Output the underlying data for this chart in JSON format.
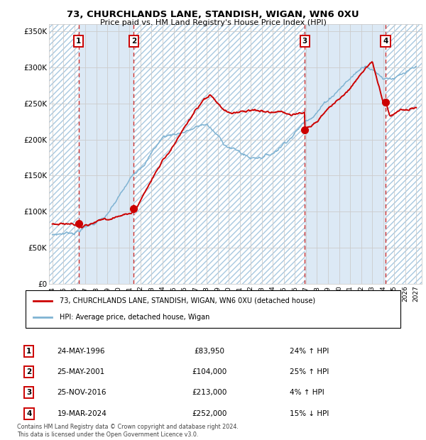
{
  "title1": "73, CHURCHLANDS LANE, STANDISH, WIGAN, WN6 0XU",
  "title2": "Price paid vs. HM Land Registry's House Price Index (HPI)",
  "ylim": [
    0,
    360000
  ],
  "yticks": [
    0,
    50000,
    100000,
    150000,
    200000,
    250000,
    300000,
    350000
  ],
  "ytick_labels": [
    "£0",
    "£50K",
    "£100K",
    "£150K",
    "£200K",
    "£250K",
    "£300K",
    "£350K"
  ],
  "xlim_start": 1993.7,
  "xlim_end": 2027.5,
  "xticks": [
    1994,
    1995,
    1996,
    1997,
    1998,
    1999,
    2000,
    2001,
    2002,
    2003,
    2004,
    2005,
    2006,
    2007,
    2008,
    2009,
    2010,
    2011,
    2012,
    2013,
    2014,
    2015,
    2016,
    2017,
    2018,
    2019,
    2020,
    2021,
    2022,
    2023,
    2024,
    2025,
    2026,
    2027
  ],
  "grid_color": "#cccccc",
  "bg_color": "#dce9f5",
  "line_color_red": "#cc0000",
  "line_color_blue": "#7fb3d3",
  "marker_color": "#cc0000",
  "dashed_line_color": "#cc3333",
  "transactions": [
    {
      "num": 1,
      "date_x": 1996.39,
      "price": 83950,
      "label": "24-MAY-1996",
      "price_str": "£83,950",
      "pct": "24%",
      "dir": "↑"
    },
    {
      "num": 2,
      "date_x": 2001.39,
      "price": 104000,
      "label": "25-MAY-2001",
      "price_str": "£104,000",
      "pct": "25%",
      "dir": "↑"
    },
    {
      "num": 3,
      "date_x": 2016.9,
      "price": 213000,
      "label": "25-NOV-2016",
      "price_str": "£213,000",
      "pct": "4%",
      "dir": "↑"
    },
    {
      "num": 4,
      "date_x": 2024.22,
      "price": 252000,
      "label": "19-MAR-2024",
      "price_str": "£252,000",
      "pct": "15%",
      "dir": "↓"
    }
  ],
  "legend_label_red": "73, CHURCHLANDS LANE, STANDISH, WIGAN, WN6 0XU (detached house)",
  "legend_label_blue": "HPI: Average price, detached house, Wigan",
  "footer": "Contains HM Land Registry data © Crown copyright and database right 2024.\nThis data is licensed under the Open Government Licence v3.0."
}
